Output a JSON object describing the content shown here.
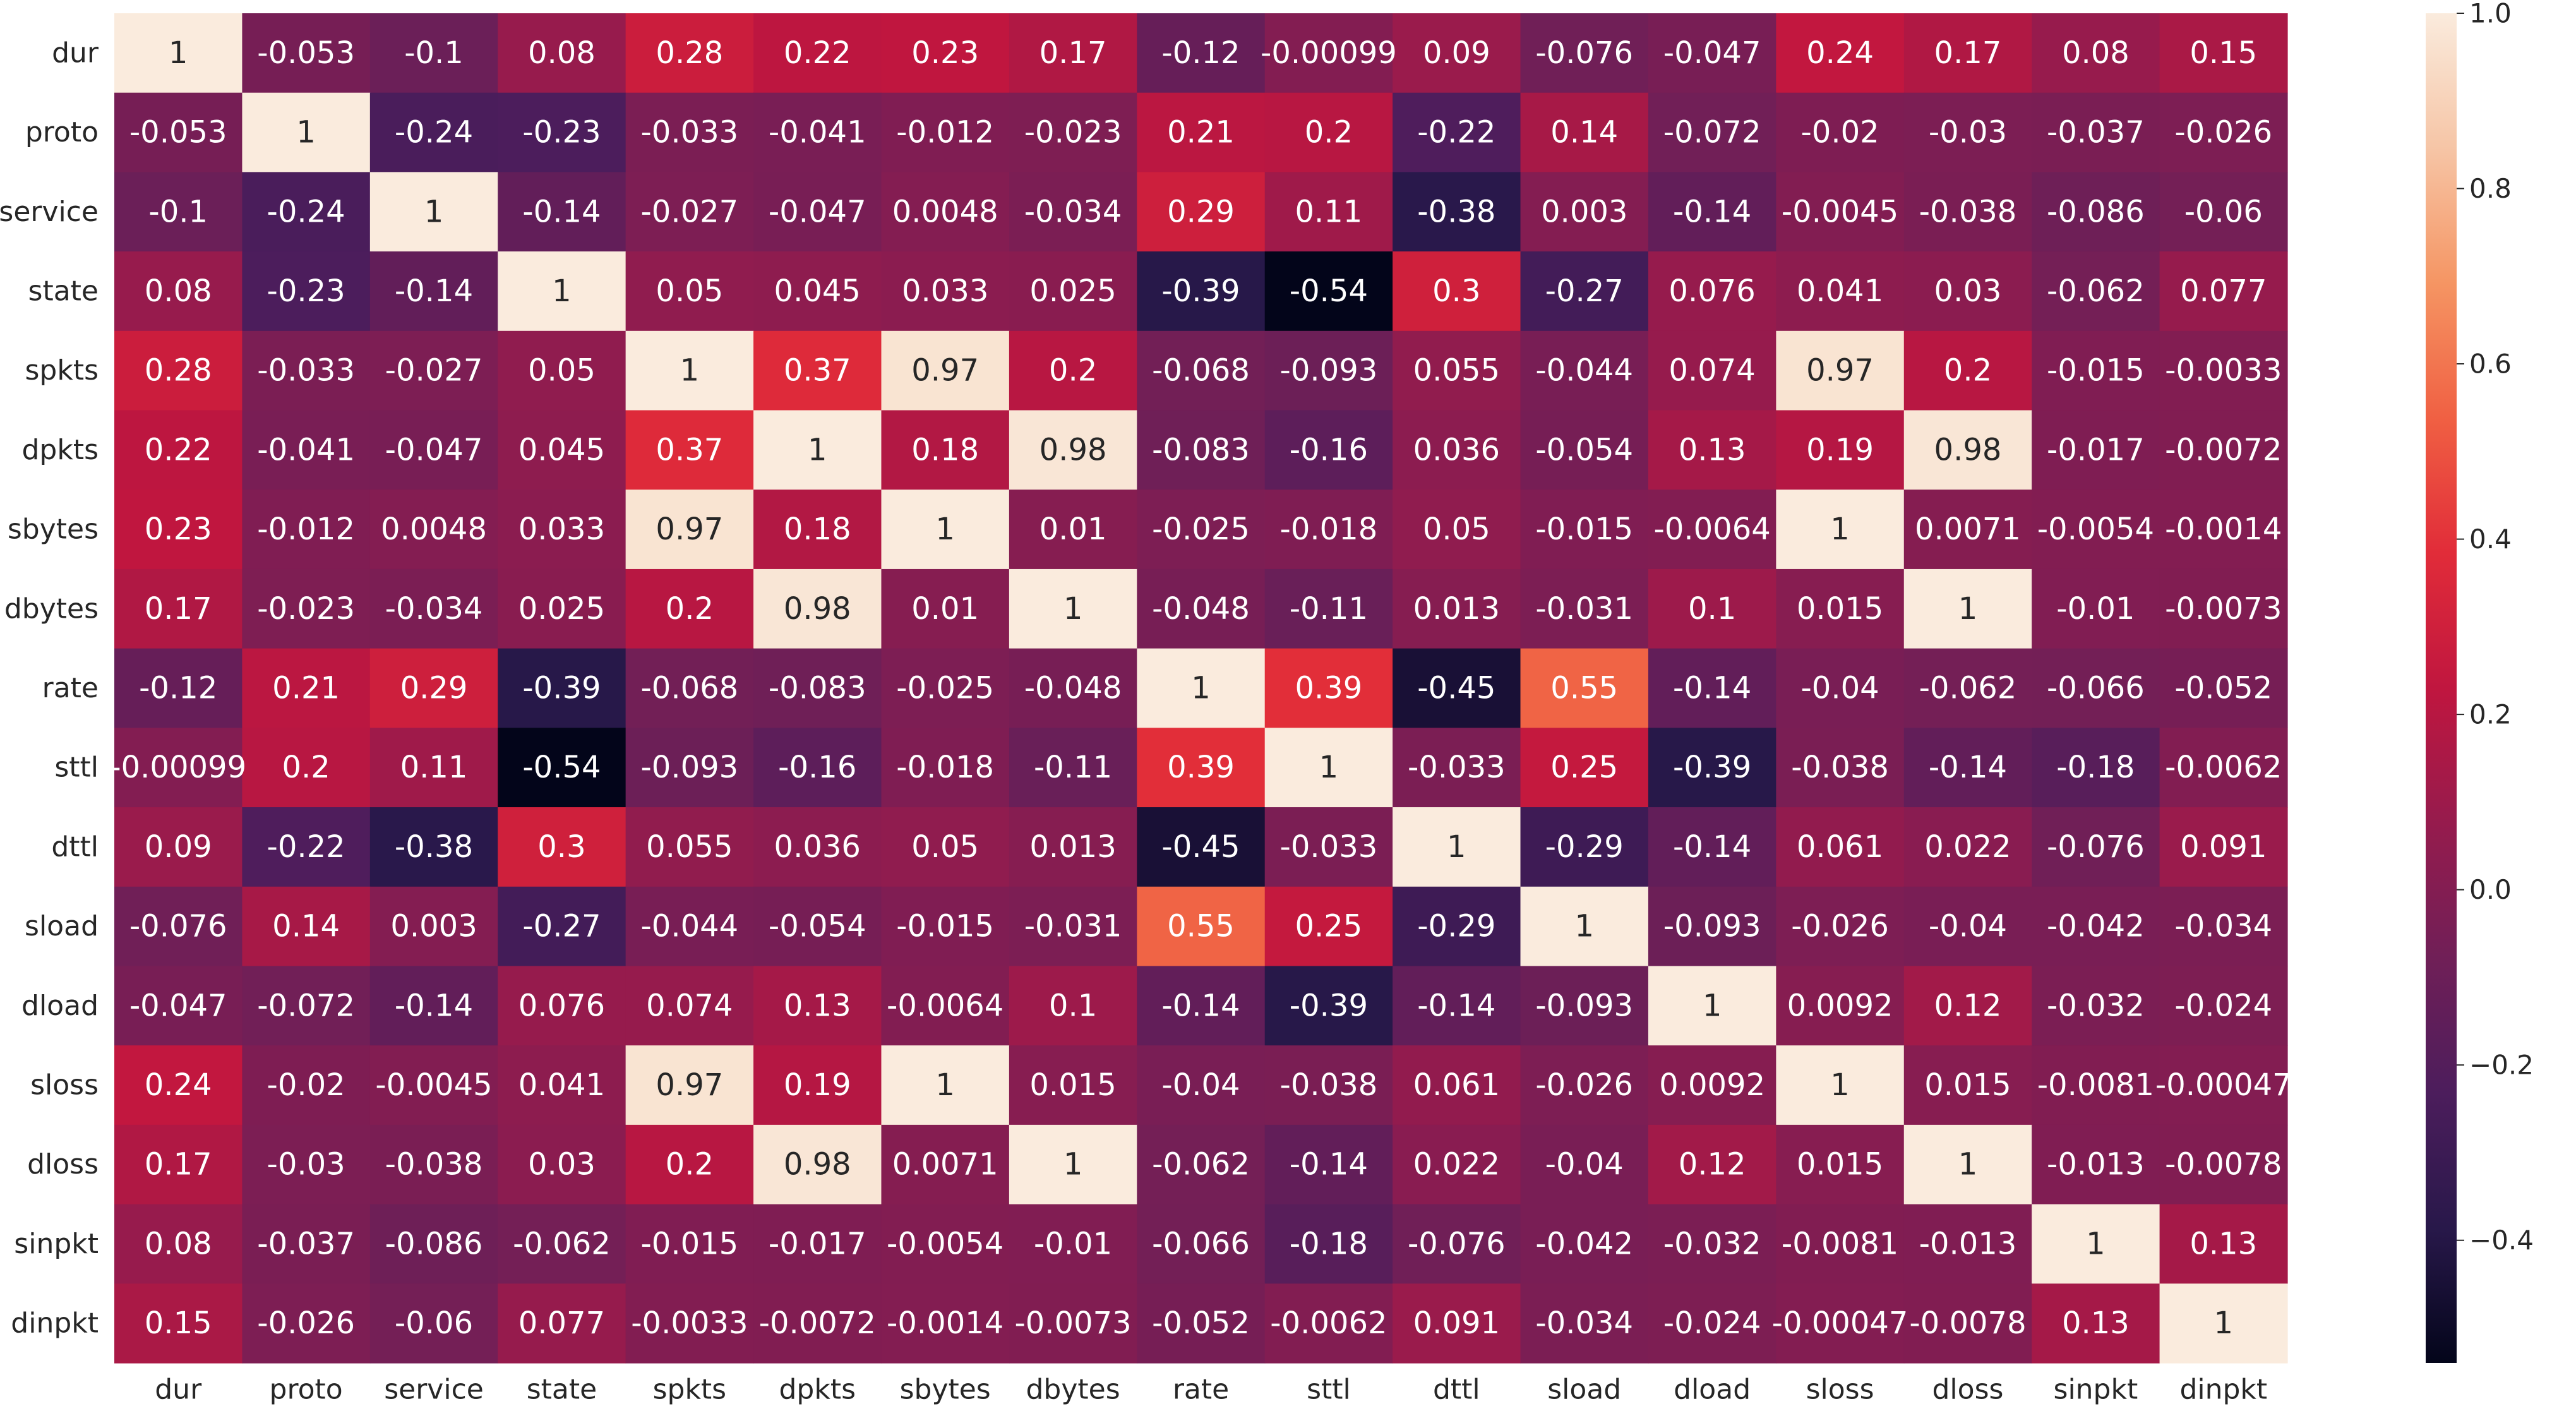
{
  "chart_data": {
    "type": "heatmap",
    "title": "",
    "xlabel": "",
    "ylabel": "",
    "labels": [
      "dur",
      "proto",
      "service",
      "state",
      "spkts",
      "dpkts",
      "sbytes",
      "dbytes",
      "rate",
      "sttl",
      "dttl",
      "sload",
      "dload",
      "sloss",
      "dloss",
      "sinpkt",
      "dinpkt"
    ],
    "matrix": [
      [
        "1",
        "-0.053",
        "-0.1",
        "0.08",
        "0.28",
        "0.22",
        "0.23",
        "0.17",
        "-0.12",
        "-0.00099",
        "0.09",
        "-0.076",
        "-0.047",
        "0.24",
        "0.17",
        "0.08",
        "0.15"
      ],
      [
        "-0.053",
        "1",
        "-0.24",
        "-0.23",
        "-0.033",
        "-0.041",
        "-0.012",
        "-0.023",
        "0.21",
        "0.2",
        "-0.22",
        "0.14",
        "-0.072",
        "-0.02",
        "-0.03",
        "-0.037",
        "-0.026"
      ],
      [
        "-0.1",
        "-0.24",
        "1",
        "-0.14",
        "-0.027",
        "-0.047",
        "0.0048",
        "-0.034",
        "0.29",
        "0.11",
        "-0.38",
        "0.003",
        "-0.14",
        "-0.0045",
        "-0.038",
        "-0.086",
        "-0.06"
      ],
      [
        "0.08",
        "-0.23",
        "-0.14",
        "1",
        "0.05",
        "0.045",
        "0.033",
        "0.025",
        "-0.39",
        "-0.54",
        "0.3",
        "-0.27",
        "0.076",
        "0.041",
        "0.03",
        "-0.062",
        "0.077"
      ],
      [
        "0.28",
        "-0.033",
        "-0.027",
        "0.05",
        "1",
        "0.37",
        "0.97",
        "0.2",
        "-0.068",
        "-0.093",
        "0.055",
        "-0.044",
        "0.074",
        "0.97",
        "0.2",
        "-0.015",
        "-0.0033"
      ],
      [
        "0.22",
        "-0.041",
        "-0.047",
        "0.045",
        "0.37",
        "1",
        "0.18",
        "0.98",
        "-0.083",
        "-0.16",
        "0.036",
        "-0.054",
        "0.13",
        "0.19",
        "0.98",
        "-0.017",
        "-0.0072"
      ],
      [
        "0.23",
        "-0.012",
        "0.0048",
        "0.033",
        "0.97",
        "0.18",
        "1",
        "0.01",
        "-0.025",
        "-0.018",
        "0.05",
        "-0.015",
        "-0.0064",
        "1",
        "0.0071",
        "-0.0054",
        "-0.0014"
      ],
      [
        "0.17",
        "-0.023",
        "-0.034",
        "0.025",
        "0.2",
        "0.98",
        "0.01",
        "1",
        "-0.048",
        "-0.11",
        "0.013",
        "-0.031",
        "0.1",
        "0.015",
        "1",
        "-0.01",
        "-0.0073"
      ],
      [
        "-0.12",
        "0.21",
        "0.29",
        "-0.39",
        "-0.068",
        "-0.083",
        "-0.025",
        "-0.048",
        "1",
        "0.39",
        "-0.45",
        "0.55",
        "-0.14",
        "-0.04",
        "-0.062",
        "-0.066",
        "-0.052"
      ],
      [
        "-0.00099",
        "0.2",
        "0.11",
        "-0.54",
        "-0.093",
        "-0.16",
        "-0.018",
        "-0.11",
        "0.39",
        "1",
        "-0.033",
        "0.25",
        "-0.39",
        "-0.038",
        "-0.14",
        "-0.18",
        "-0.0062"
      ],
      [
        "0.09",
        "-0.22",
        "-0.38",
        "0.3",
        "0.055",
        "0.036",
        "0.05",
        "0.013",
        "-0.45",
        "-0.033",
        "1",
        "-0.29",
        "-0.14",
        "0.061",
        "0.022",
        "-0.076",
        "0.091"
      ],
      [
        "-0.076",
        "0.14",
        "0.003",
        "-0.27",
        "-0.044",
        "-0.054",
        "-0.015",
        "-0.031",
        "0.55",
        "0.25",
        "-0.29",
        "1",
        "-0.093",
        "-0.026",
        "-0.04",
        "-0.042",
        "-0.034"
      ],
      [
        "-0.047",
        "-0.072",
        "-0.14",
        "0.076",
        "0.074",
        "0.13",
        "-0.0064",
        "0.1",
        "-0.14",
        "-0.39",
        "-0.14",
        "-0.093",
        "1",
        "0.0092",
        "0.12",
        "-0.032",
        "-0.024"
      ],
      [
        "0.24",
        "-0.02",
        "-0.0045",
        "0.041",
        "0.97",
        "0.19",
        "1",
        "0.015",
        "-0.04",
        "-0.038",
        "0.061",
        "-0.026",
        "0.0092",
        "1",
        "0.015",
        "-0.0081",
        "-0.00047"
      ],
      [
        "0.17",
        "-0.03",
        "-0.038",
        "0.03",
        "0.2",
        "0.98",
        "0.0071",
        "1",
        "-0.062",
        "-0.14",
        "0.022",
        "-0.04",
        "0.12",
        "0.015",
        "1",
        "-0.013",
        "-0.0078"
      ],
      [
        "0.08",
        "-0.037",
        "-0.086",
        "-0.062",
        "-0.015",
        "-0.017",
        "-0.0054",
        "-0.01",
        "-0.066",
        "-0.18",
        "-0.076",
        "-0.042",
        "-0.032",
        "-0.0081",
        "-0.013",
        "1",
        "0.13"
      ],
      [
        "0.15",
        "-0.026",
        "-0.06",
        "0.077",
        "-0.0033",
        "-0.0072",
        "-0.0014",
        "-0.0073",
        "-0.052",
        "-0.0062",
        "0.091",
        "-0.034",
        "-0.024",
        "-0.00047",
        "-0.0078",
        "0.13",
        "1"
      ]
    ],
    "vmin": -0.54,
    "vmax": 1.0,
    "colormap": "rocket",
    "colorbar": {
      "ticks": [
        "1.0",
        "0.8",
        "0.6",
        "0.4",
        "0.2",
        "0.0",
        "−0.2",
        "−0.4"
      ],
      "tick_values": [
        1.0,
        0.8,
        0.6,
        0.4,
        0.2,
        0.0,
        -0.2,
        -0.4
      ]
    },
    "grid": false,
    "legend": "colorbar-right"
  }
}
